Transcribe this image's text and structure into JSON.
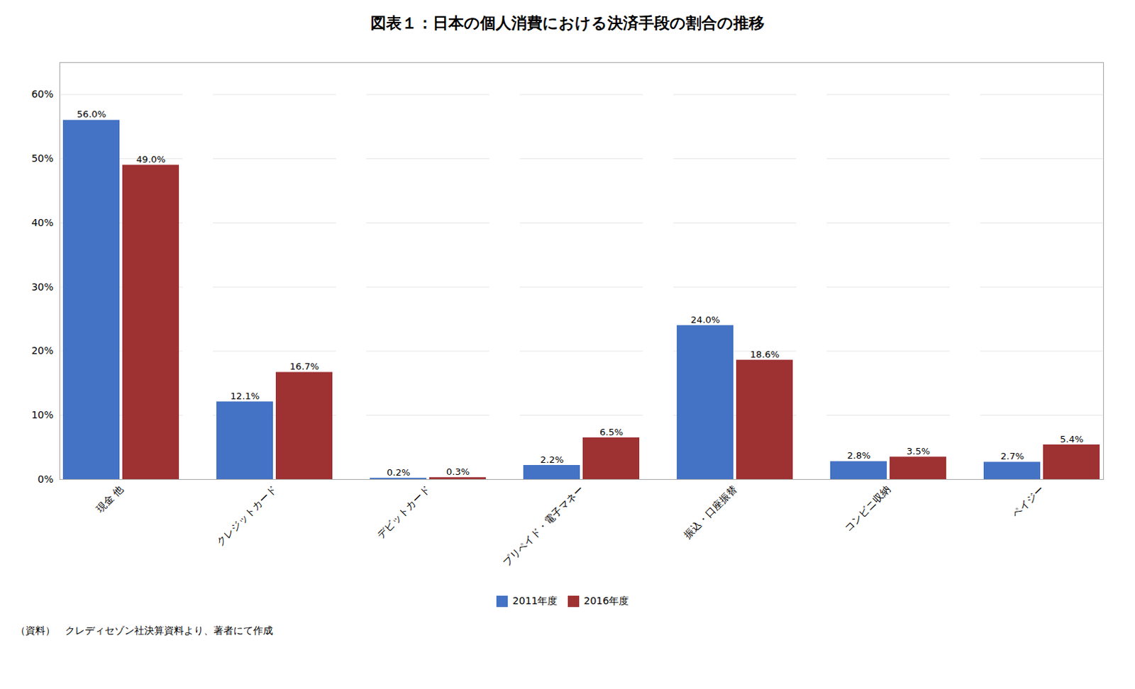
{
  "chart_data": {
    "type": "bar",
    "title": "図表１：日本の個人消費における決済手段の割合の推移",
    "categories": [
      "現金 他",
      "クレジットカード",
      "デビットカード",
      "プリペイド・電子マネー",
      "振込・口座振替",
      "コンビニ収納",
      "ペイジー"
    ],
    "series": [
      {
        "name": "2011年度",
        "color": "#4472C4",
        "values": [
          56.0,
          12.1,
          0.2,
          2.2,
          24.0,
          2.8,
          2.7
        ],
        "value_labels": [
          "56.0%",
          "12.1%",
          "0.2%",
          "2.2%",
          "24.0%",
          "2.8%",
          "2.7%"
        ]
      },
      {
        "name": "2016年度",
        "color": "#9E3132",
        "values": [
          49.0,
          16.7,
          0.3,
          6.5,
          18.6,
          3.5,
          5.4
        ],
        "value_labels": [
          "49.0%",
          "16.7%",
          "0.3%",
          "6.5%",
          "18.6%",
          "3.5%",
          "5.4%"
        ]
      }
    ],
    "ylim": [
      0,
      65
    ],
    "yticks": [
      {
        "value": 0,
        "label": "0%"
      },
      {
        "value": 10,
        "label": "10%"
      },
      {
        "value": 20,
        "label": "20%"
      },
      {
        "value": 30,
        "label": "30%"
      },
      {
        "value": 40,
        "label": "40%"
      },
      {
        "value": 50,
        "label": "50%"
      },
      {
        "value": 60,
        "label": "60%"
      }
    ],
    "grid": true,
    "data_labels": true,
    "legend": "bottom",
    "footnote": "（資料）　クレディセゾン社決算資料より、著者にて作成"
  }
}
